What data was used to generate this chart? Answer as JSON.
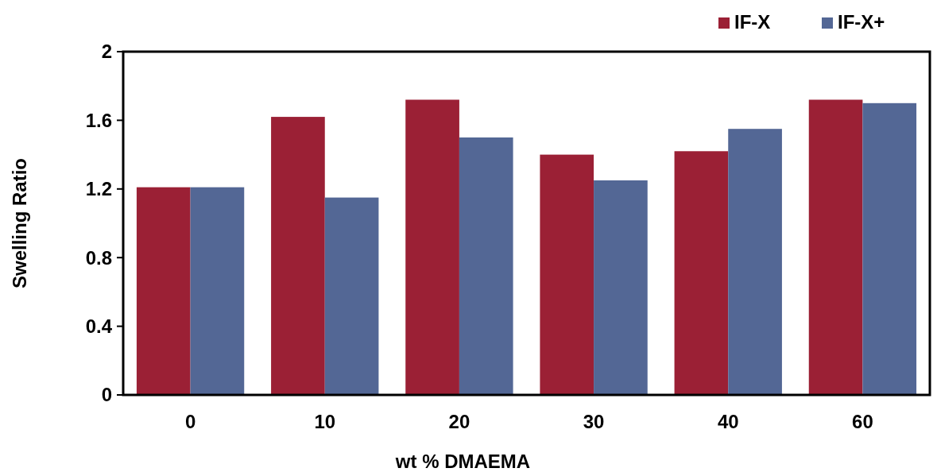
{
  "chart_data": {
    "type": "bar",
    "xlabel": "wt % DMAEMA",
    "ylabel": "Swelling Ratio",
    "categories": [
      "0",
      "10",
      "20",
      "30",
      "40",
      "60"
    ],
    "series": [
      {
        "name": "IF-X",
        "color": "#9b2035",
        "values": [
          1.21,
          1.62,
          1.72,
          1.4,
          1.42,
          1.72
        ]
      },
      {
        "name": "IF-X+",
        "color": "#536795",
        "values": [
          1.21,
          1.15,
          1.5,
          1.25,
          1.55,
          1.7
        ]
      }
    ],
    "ylim": [
      0,
      2
    ],
    "yticks": [
      0,
      0.4,
      0.8,
      1.2,
      1.6,
      2
    ],
    "grid": false,
    "legend": "top right"
  }
}
